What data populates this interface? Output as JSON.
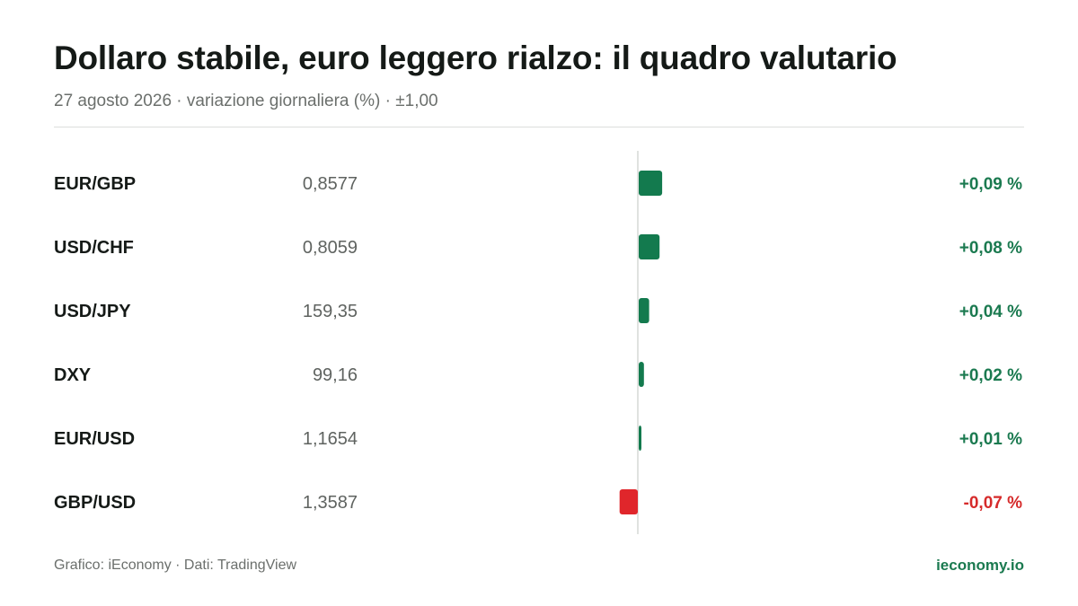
{
  "header": {
    "title": "Dollaro stabile, euro leggero rialzo: il quadro valutario",
    "subtitle": "27 agosto 2026 · variazione giornaliera (%) · ±1,00"
  },
  "footer": {
    "credit": "Grafico: iEconomy · Dati: TradingView",
    "site": "ieconomy.io"
  },
  "colors": {
    "positive": "#137a4e",
    "negative": "#e0262b",
    "positive_text": "#1b7a50",
    "negative_text": "#d62b2b"
  },
  "chart_data": {
    "type": "bar",
    "orientation": "horizontal",
    "title": "Dollaro stabile, euro leggero rialzo: il quadro valutario",
    "xlim": [
      -1,
      1
    ],
    "categories": [
      "EUR/GBP",
      "USD/CHF",
      "USD/JPY",
      "DXY",
      "EUR/USD",
      "GBP/USD"
    ],
    "prices": [
      "0,8577",
      "0,8059",
      "159,35",
      "99,16",
      "1,1654",
      "1,3587"
    ],
    "values": [
      0.09,
      0.08,
      0.04,
      0.02,
      0.01,
      -0.07
    ],
    "value_labels": [
      "+0,09 %",
      "+0,08 %",
      "+0,04 %",
      "+0,02 %",
      "+0,01 %",
      "-0,07 %"
    ]
  }
}
